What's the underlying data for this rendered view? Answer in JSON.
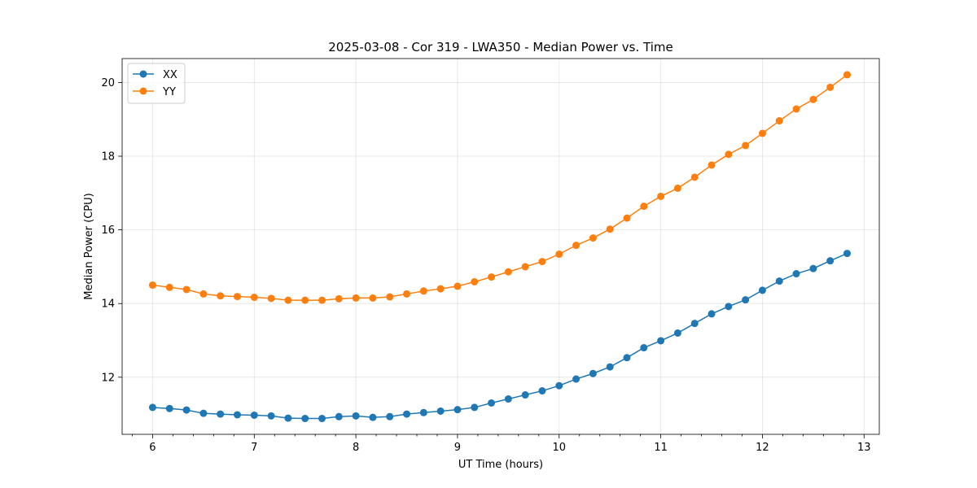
{
  "chart_data": {
    "type": "line",
    "title": "2025-03-08 - Cor 319 - LWA350 - Median Power vs. Time",
    "xlabel": "UT Time (hours)",
    "ylabel": "Median Power (CPU)",
    "xlim": [
      5.7,
      13.15
    ],
    "ylim": [
      10.45,
      20.65
    ],
    "xticks": [
      6,
      7,
      8,
      9,
      10,
      11,
      12,
      13
    ],
    "yticks": [
      12,
      14,
      16,
      18,
      20
    ],
    "grid": true,
    "legend_position": "top-left",
    "x": [
      6.0,
      6.1667,
      6.3333,
      6.5,
      6.6667,
      6.8333,
      7.0,
      7.1667,
      7.3333,
      7.5,
      7.6667,
      7.8333,
      8.0,
      8.1667,
      8.3333,
      8.5,
      8.6667,
      8.8333,
      9.0,
      9.1667,
      9.3333,
      9.5,
      9.6667,
      9.8333,
      10.0,
      10.1667,
      10.3333,
      10.5,
      10.6667,
      10.8333,
      11.0,
      11.1667,
      11.3333,
      11.5,
      11.6667,
      11.8333,
      12.0,
      12.1667,
      12.3333,
      12.5,
      12.6667,
      12.8333
    ],
    "series": [
      {
        "name": "XX",
        "color": "#1f77b4",
        "values": [
          11.18,
          11.15,
          11.11,
          11.02,
          11.0,
          10.98,
          10.97,
          10.95,
          10.89,
          10.88,
          10.88,
          10.93,
          10.95,
          10.91,
          10.93,
          11.0,
          11.04,
          11.08,
          11.12,
          11.18,
          11.3,
          11.41,
          11.52,
          11.63,
          11.77,
          11.95,
          12.1,
          12.28,
          12.53,
          12.8,
          12.99,
          13.2,
          13.46,
          13.72,
          13.92,
          14.1,
          14.36,
          14.61,
          14.81,
          14.95,
          15.16,
          15.36
        ]
      },
      {
        "name": "YY",
        "color": "#ff7f0e",
        "values": [
          14.5,
          14.44,
          14.38,
          14.26,
          14.21,
          14.19,
          14.17,
          14.14,
          14.09,
          14.09,
          14.09,
          14.13,
          14.15,
          14.15,
          14.18,
          14.26,
          14.34,
          14.4,
          14.47,
          14.59,
          14.72,
          14.86,
          15.0,
          15.14,
          15.34,
          15.58,
          15.78,
          16.02,
          16.32,
          16.64,
          16.91,
          17.13,
          17.43,
          17.76,
          18.05,
          18.29,
          18.62,
          18.96,
          19.28,
          19.54,
          19.87,
          20.21
        ]
      }
    ]
  }
}
